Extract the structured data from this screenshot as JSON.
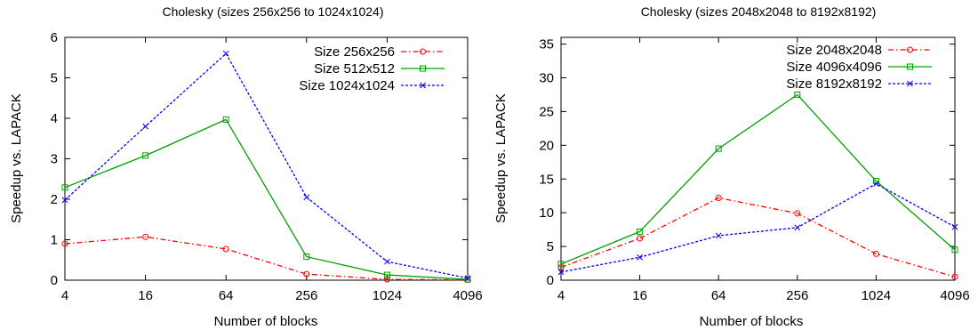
{
  "chart_data": [
    {
      "type": "line",
      "title": "Cholesky (sizes 256x256 to 1024x1024)",
      "xlabel": "Number of blocks",
      "ylabel": "Speedup vs. LAPACK",
      "x_scale": "log",
      "categories": [
        "4",
        "16",
        "64",
        "256",
        "1024",
        "4096"
      ],
      "ylim": [
        0,
        6
      ],
      "yticks": [
        "0",
        "1",
        "2",
        "3",
        "4",
        "5",
        "6"
      ],
      "legend_position": "top-right",
      "grid": false,
      "series": [
        {
          "name": "Size 256x256",
          "values": [
            0.9,
            1.07,
            0.77,
            0.15,
            0.02,
            0.01
          ],
          "color": "#ff0000",
          "marker": "circle",
          "dash": "dashdot"
        },
        {
          "name": "Size 512x512",
          "values": [
            2.29,
            3.08,
            3.97,
            0.58,
            0.13,
            0.02
          ],
          "color": "#00a000",
          "marker": "square",
          "dash": "solid"
        },
        {
          "name": "Size 1024x1024",
          "values": [
            1.98,
            3.8,
            5.6,
            2.05,
            0.46,
            0.05
          ],
          "color": "#0000ff",
          "marker": "cross",
          "dash": "dotted"
        }
      ]
    },
    {
      "type": "line",
      "title": "Cholesky (sizes 2048x2048 to 8192x8192)",
      "xlabel": "Number of blocks",
      "ylabel": "Speedup vs. LAPACK",
      "x_scale": "log",
      "categories": [
        "4",
        "16",
        "64",
        "256",
        "1024",
        "4096"
      ],
      "ylim": [
        0,
        36
      ],
      "yticks": [
        "0",
        "5",
        "10",
        "15",
        "20",
        "25",
        "30",
        "35"
      ],
      "legend_position": "top-right",
      "grid": false,
      "series": [
        {
          "name": "Size 2048x2048",
          "values": [
            1.9,
            6.2,
            12.2,
            9.9,
            3.9,
            0.5
          ],
          "color": "#ff0000",
          "marker": "circle",
          "dash": "dashdot"
        },
        {
          "name": "Size 4096x4096",
          "values": [
            2.4,
            7.2,
            19.5,
            27.5,
            14.7,
            4.5
          ],
          "color": "#00a000",
          "marker": "square",
          "dash": "solid"
        },
        {
          "name": "Size 8192x8192",
          "values": [
            1.2,
            3.4,
            6.6,
            7.8,
            14.3,
            7.9
          ],
          "color": "#0000ff",
          "marker": "cross",
          "dash": "dotted"
        }
      ]
    }
  ]
}
